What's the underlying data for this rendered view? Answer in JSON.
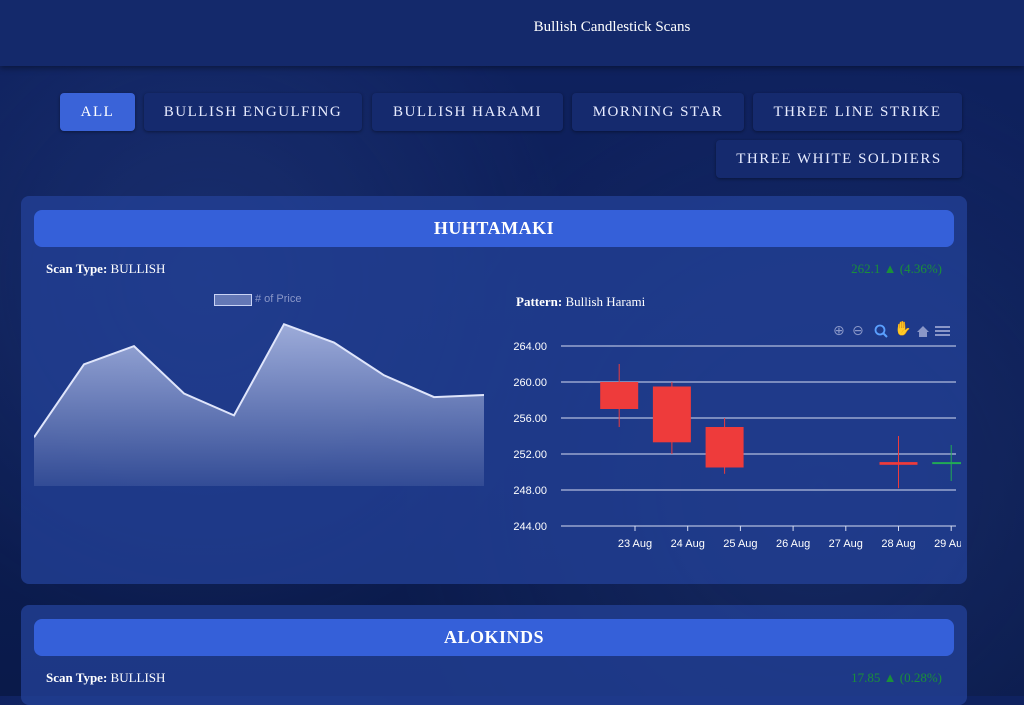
{
  "header": {
    "title": "Bullish Candlestick Scans"
  },
  "filters": [
    {
      "label": "ALL",
      "active": true
    },
    {
      "label": "BULLISH ENGULFING",
      "active": false
    },
    {
      "label": "BULLISH HARAMI",
      "active": false
    },
    {
      "label": "MORNING STAR",
      "active": false
    },
    {
      "label": "THREE LINE STRIKE",
      "active": false
    },
    {
      "label": "THREE WHITE SOLDIERS",
      "active": false
    }
  ],
  "cards": [
    {
      "name": "HUHTAMAKI",
      "scan_type_label": "Scan Type:",
      "scan_type": "BULLISH",
      "price": "262.1 ▲ (4.36%)",
      "pattern_label": "Pattern:",
      "pattern": "Bullish Harami",
      "area_legend": "# of Price",
      "toolbar_icons": [
        "zoom-in-icon",
        "zoom-out-icon",
        "zoom-select-icon",
        "pan-hand-icon",
        "home-reset-icon",
        "menu-icon"
      ]
    },
    {
      "name": "ALOKINDS",
      "scan_type_label": "Scan Type:",
      "scan_type": "BULLISH",
      "price": "17.85 ▲ (0.28%)"
    }
  ],
  "chart_data": [
    {
      "type": "area",
      "series": [
        {
          "name": "# of Price",
          "values": [
            252,
            262,
            264.5,
            258,
            255,
            267.5,
            265,
            260.5,
            257.5,
            257.8
          ]
        }
      ],
      "ylim": [
        246,
        270
      ]
    },
    {
      "type": "candlestick",
      "categories": [
        "23 Aug",
        "24 Aug",
        "25 Aug",
        "26 Aug",
        "27 Aug",
        "28 Aug",
        "29 Aug"
      ],
      "y_ticks": [
        "264.00",
        "260.00",
        "256.00",
        "252.00",
        "248.00",
        "244.00"
      ],
      "ylim": [
        244,
        266
      ],
      "candles": [
        {
          "x": "22.7",
          "open": 260,
          "high": 262,
          "low": 255,
          "close": 257,
          "color": "#ee3b3b"
        },
        {
          "x": "23.7",
          "open": 259.5,
          "high": 260,
          "low": 252,
          "close": 253.3,
          "color": "#ee3b3b"
        },
        {
          "x": "24.7",
          "open": 255,
          "high": 256,
          "low": 249.8,
          "close": 250.5,
          "color": "#ee3b3b"
        },
        {
          "x": "28",
          "open": 251.1,
          "high": 254,
          "low": 248.2,
          "close": 250.8,
          "color": "#ee3b3b"
        },
        {
          "x": "29",
          "open": 250.9,
          "high": 253,
          "low": 249,
          "close": 251.1,
          "color": "#22aa55"
        }
      ],
      "colors": {
        "bearish": "#ee3b3b",
        "bullish": "#22aa55"
      }
    }
  ]
}
